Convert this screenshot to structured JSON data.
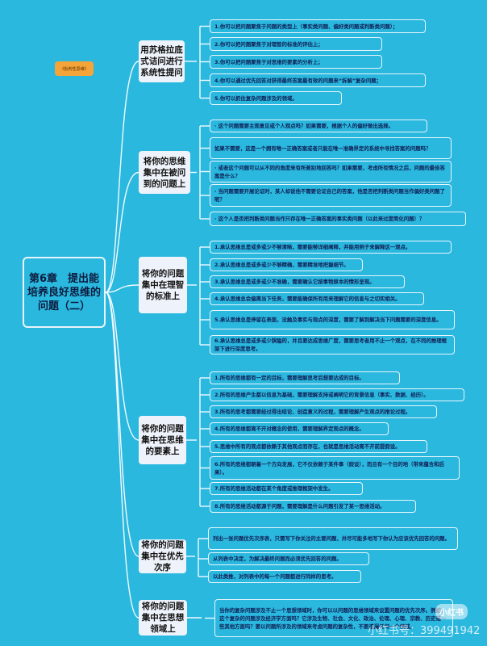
{
  "tag": "《批判性思维》",
  "root": "第6章　提出能培养良好思维的问题（二）",
  "sections": [
    {
      "topic": "用苏格拉底式诘问进行系统性提问",
      "items": [
        "1.你可以把问题聚焦于问题的类型上（事实类问题、偏好类问题或判断类问题）；",
        "2.你可以把问题聚焦于对理智的标准的评估上；",
        "3.你可以把问题聚焦于对思维的要素的分析上；",
        "4.你可以通过优先回答对获得最终答案最有效的问题来“拆解”复杂问题；",
        "5.你可以抓住复杂问题涉及的领域。"
      ]
    },
    {
      "topic": "将你的思维集中在被问到的问题上",
      "items": [
        "· 这个问题需要主观意见或个人观点吗？如果需要，根据个人的偏好做出选择。",
        "如果不需要，这是一个拥有唯一正确答案或者只能在唯一准确界定的系统中寻找答案的问题吗？",
        "· 或者这个问题可以从不同的角度来有所差别地回答吗？如果需要，考虑所有情况之后，问题的最佳答案是什么？",
        "· 当问题需要开展论证时，某人却说他不需要论证自己的答案，他是否把判断类问题当作偏好类问题了呢？",
        "· 这个人是否把判断类问题当作只存在唯一正确答案的事实类问题（以此来过度简化问题）？"
      ]
    },
    {
      "topic": "将你的问题集中在理智的标准上",
      "items": [
        "1.承认思维总是或多或少不够清晰，需要能够详细阐释，并能用例子来解释这一观点。",
        "2.承认思维总是或多或少不够精确，需要精准地把握细节。",
        "3.承认思维总是或多或少不准确，需要确认它按事物原本的情形呈现。",
        "4.承认思维总会偏离当下任务，需要能确保所有用来理解它的信息与之切实相关。",
        "5.承认思维总是停留在表面，没触及事实与观点的深度，需要了解到解决当下问题需要的深度信息。",
        "6.承认思维总是或多或少狭隘的，并且要达成思维广度，需要思考者用不止一个观点，在不同的推理框架下进行深度思考。"
      ]
    },
    {
      "topic": "将你的问题集中在思维的要素上",
      "items": [
        "1.所有的思维都有一定的目标，需要理解思考后想要达成的目标。",
        "2.所有的思维产生都以信息为基础，需要理解支持或阐明它的背景信息（事实、数据、经历）。",
        "3.所有的思考都需要经过得出结论、创造意义的过程，需要理解产生观点的推论过程。",
        "4.所有的思维都离不开对概念的使用，需要理解界定观点的概念。",
        "5.思维中所有的观点都依赖于其他观点而存在，也就是思维活动离不开前提假设。",
        "6.所有的思维都朝着一个方向发展，它不仅依赖于某件事（假设），而且有一个目的地（带来蕴含和后果）。",
        "7.所有的思维活动都在某个角度或推理框架中发生。",
        "8.所有的思维活动都源于问题，需要理解是什么问题引发了某一思维活动。"
      ]
    },
    {
      "topic": "将你的问题集中在优先次序",
      "items": [
        "列出一张问题优先次序表，只需写下你关注的主要问题，并尽可能多地写下你认为应该优先回答的问题。",
        "从列表中决定，为解决最终问题而必须优先回答的问题。",
        "以此类推，对列表中的每一个问题都进行同样的思考。"
      ]
    },
    {
      "topic": "将你的问题集中在思想领域上",
      "items": [
        "当你的复杂问题涉及不止一个思想领域时，你可以以问题的思维领域来设置问题的优先次序。例如，这个复杂的问题涉及经济学方面吗？它涉及生物、社会、文化、政治、伦理、心理、宗教、历史或一些其他方面吗？要以问题所涉及的领域来考虑问题的复杂性，不要遗漏任何一个领域。"
      ]
    }
  ],
  "watermark": {
    "logo": "小红书",
    "id": "小红书号：399491942"
  },
  "colors": {
    "background": "#2bb8df",
    "tag": "#f5a43a",
    "topic": "#eef3fb",
    "text": "#0f1f55"
  }
}
